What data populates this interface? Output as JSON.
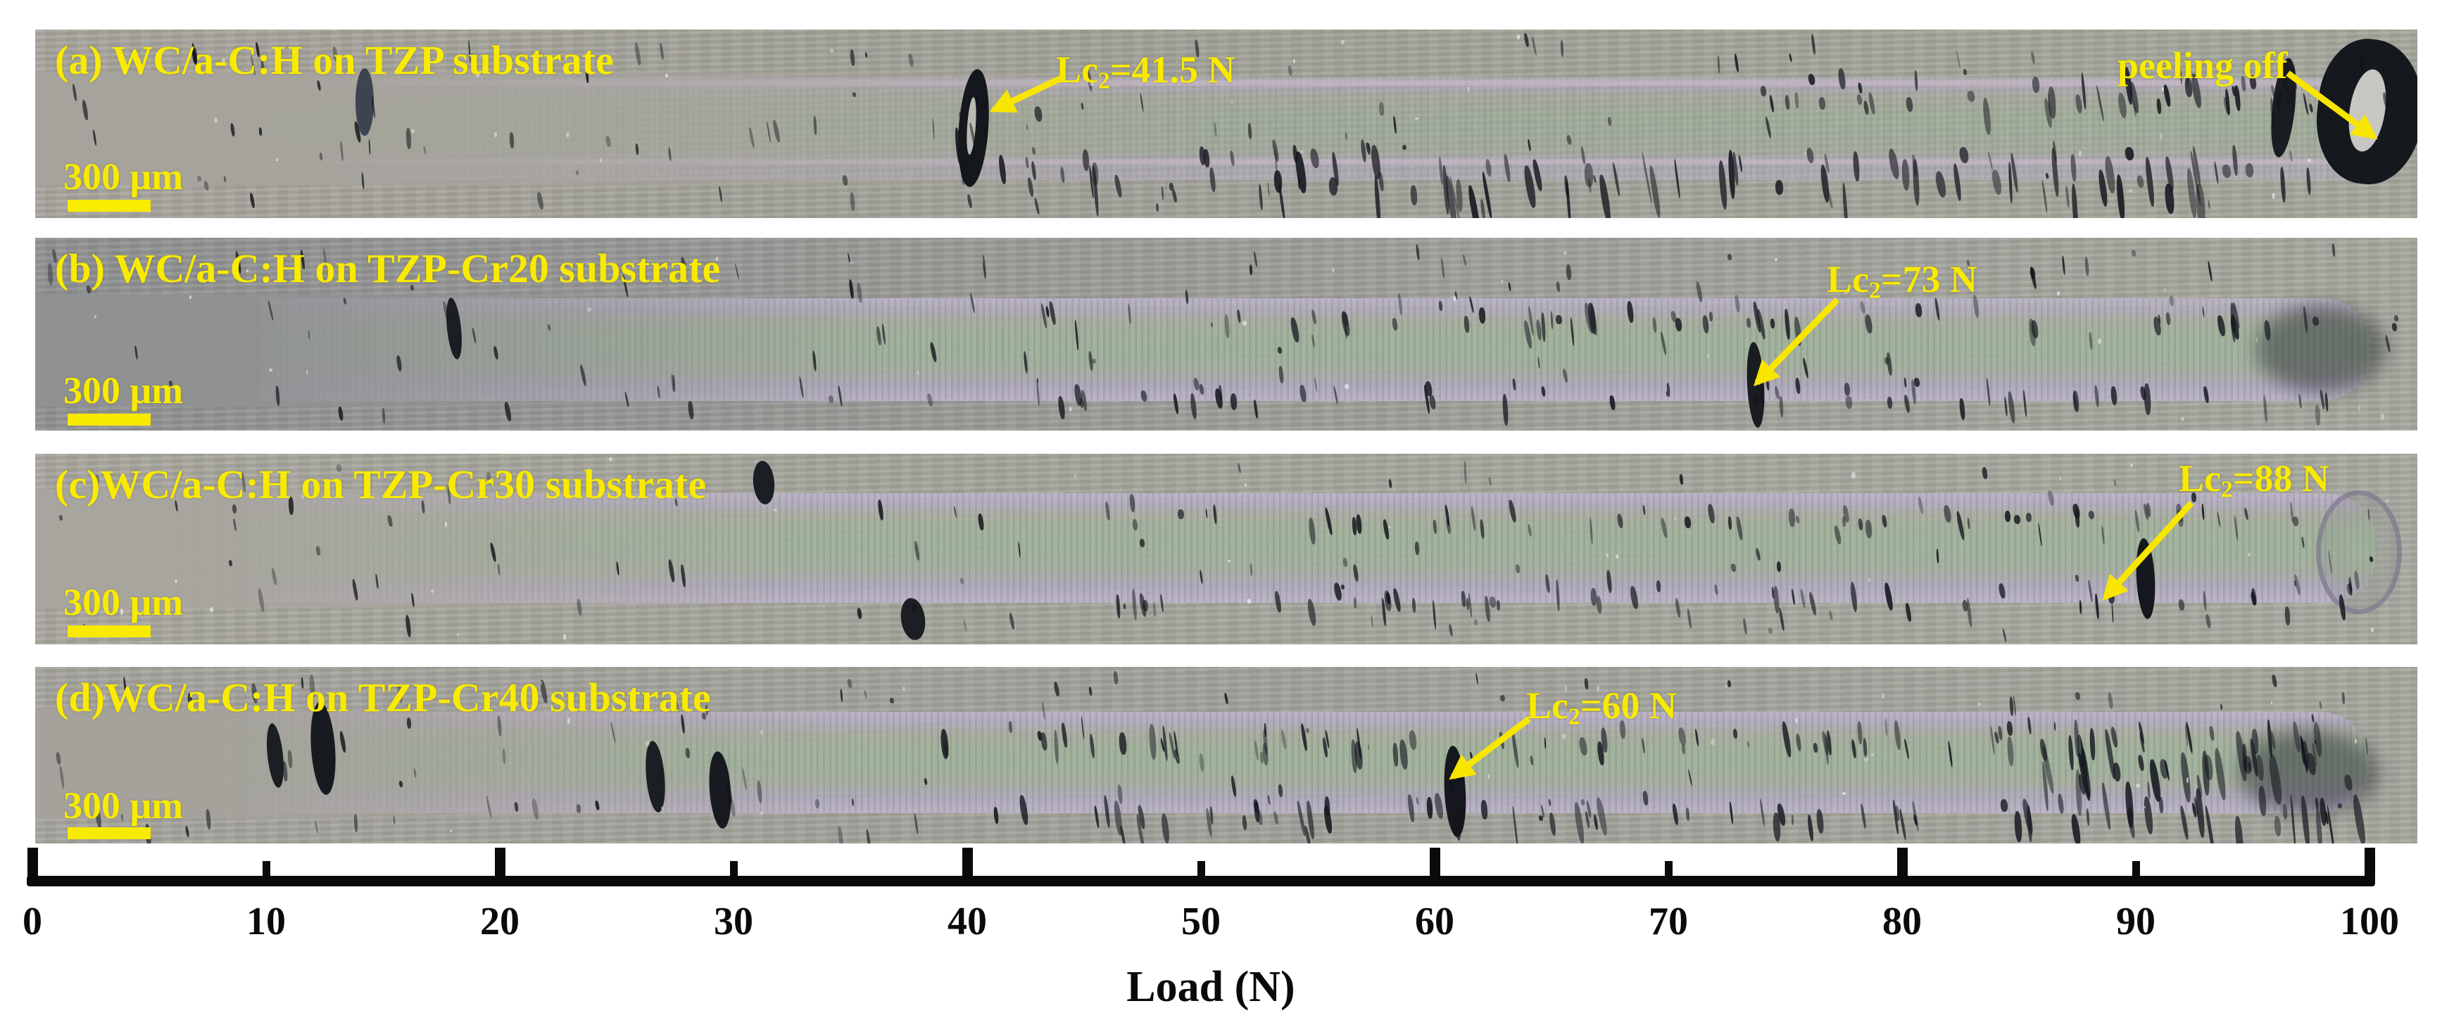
{
  "panels": [
    {
      "label": "(a) WC/a-C:H on TZP substrate",
      "scale_bar_label": "300 μm",
      "annotations": {
        "lc2": {
          "prefix": "Lc",
          "sub": "2",
          "suffix": "=41.5 N"
        },
        "peeling": {
          "text": "peeling off"
        }
      },
      "lc2_value_n": 41.5
    },
    {
      "label": "(b) WC/a-C:H on TZP-Cr20 substrate",
      "scale_bar_label": "300 μm",
      "annotations": {
        "lc2": {
          "prefix": "Lc",
          "sub": "2",
          "suffix": "=73 N"
        }
      },
      "lc2_value_n": 73
    },
    {
      "label": "(c)WC/a-C:H on TZP-Cr30 substrate",
      "scale_bar_label": "300 μm",
      "annotations": {
        "lc2": {
          "prefix": "Lc",
          "sub": "2",
          "suffix": "=88 N"
        }
      },
      "lc2_value_n": 88
    },
    {
      "label": "(d)WC/a-C:H on TZP-Cr40 substrate",
      "scale_bar_label": "300 μm",
      "annotations": {
        "lc2": {
          "prefix": "Lc",
          "sub": "2",
          "suffix": "=60 N"
        }
      },
      "lc2_value_n": 60
    }
  ],
  "axis": {
    "title": "Load (N)",
    "min": 0,
    "max": 100,
    "tick_step": 10,
    "tick_labels": [
      "0",
      "10",
      "20",
      "30",
      "40",
      "50",
      "60",
      "70",
      "80",
      "90",
      "100"
    ]
  },
  "colors": {
    "annotation_yellow": "#f8ea00",
    "axis_black": "#0a0a0a",
    "track_lavender": "#b2abbf",
    "track_green": "#9eb298"
  }
}
